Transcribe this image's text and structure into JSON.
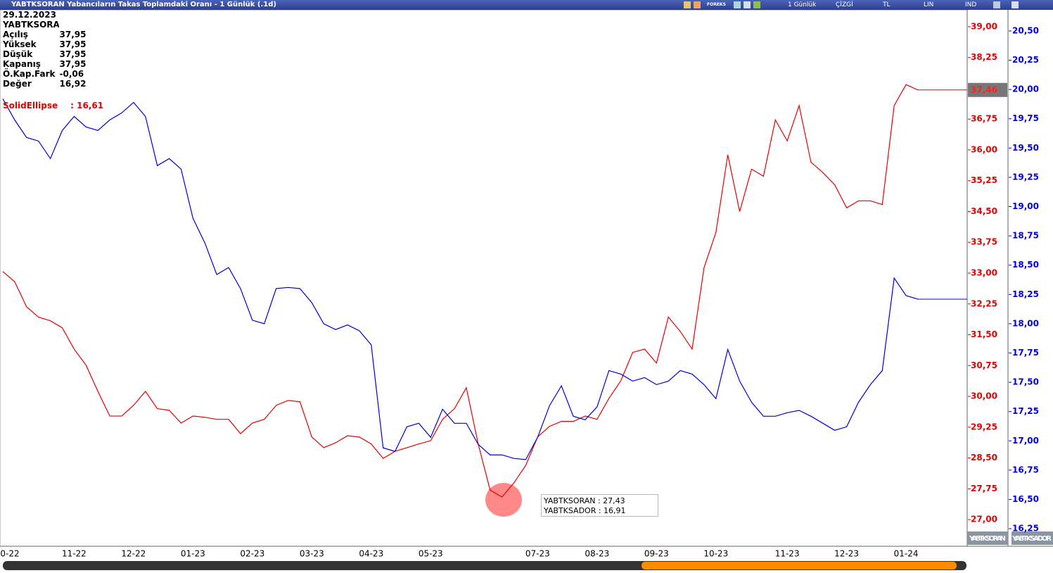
{
  "window": {
    "title": "YABTKSORAN Yabancıların Takas Toplamdaki Oranı - 1 Günlük (.1d)",
    "toolbar": [
      "FOREKS",
      "1 Günlük",
      "ÇİZGİ",
      "TL",
      "LIN",
      "IND"
    ]
  },
  "info_panel": {
    "date": "29.12.2023",
    "symbol": "YABTKSORAN",
    "rows": [
      [
        "Açılış",
        "37,95"
      ],
      [
        "Yüksek",
        "37,95"
      ],
      [
        "Düşük",
        "37,95"
      ],
      [
        "Kapanış",
        "37,95"
      ],
      [
        "Ö.Kap.Fark",
        "-0,06"
      ],
      [
        "Değer",
        "16,92"
      ]
    ],
    "drawing": {
      "name": "SolidEllipse",
      "value": ": 16,61"
    }
  },
  "tooltip": [
    "YABTKSORAN : 27,43",
    "YABTKSADOR : 16,91"
  ],
  "axis_tabs": [
    "YABTKSORAN",
    "YABTKSADOR"
  ],
  "chart_data": {
    "type": "line",
    "categories": [
      "0-22",
      null,
      null,
      null,
      null,
      null,
      "11-22",
      null,
      null,
      null,
      null,
      "12-22",
      null,
      null,
      null,
      null,
      "01-23",
      null,
      null,
      null,
      null,
      "02-23",
      null,
      null,
      null,
      null,
      "03-23",
      null,
      null,
      null,
      null,
      "04-23",
      null,
      null,
      null,
      null,
      "05-23",
      null,
      null,
      null,
      null,
      null,
      null,
      null,
      null,
      "07-23",
      null,
      null,
      null,
      null,
      "08-23",
      null,
      null,
      null,
      null,
      "09-23",
      null,
      null,
      null,
      null,
      "10-23",
      null,
      null,
      null,
      null,
      null,
      "11-23",
      null,
      null,
      null,
      null,
      "12-23",
      null,
      null,
      null,
      null,
      "01-24",
      null
    ],
    "series": [
      {
        "name": "YABTKSORAN",
        "color": "#e60000",
        "axis": "y",
        "last_label": "37,46",
        "values": [
          33.04,
          32.79,
          32.18,
          31.93,
          31.84,
          31.67,
          31.15,
          30.76,
          30.12,
          29.52,
          29.52,
          29.78,
          30.12,
          29.7,
          29.66,
          29.35,
          29.52,
          29.49,
          29.44,
          29.44,
          29.09,
          29.35,
          29.44,
          29.78,
          29.9,
          29.87,
          29.01,
          28.75,
          28.87,
          29.04,
          29.01,
          28.84,
          28.49,
          28.66,
          28.75,
          28.84,
          28.92,
          29.44,
          29.7,
          30.21,
          28.84,
          27.72,
          27.55,
          27.89,
          28.32,
          29.01,
          29.27,
          29.39,
          29.39,
          29.52,
          29.44,
          29.95,
          30.38,
          31.07,
          31.15,
          30.81,
          31.93,
          31.58,
          31.15,
          33.13,
          33.99,
          35.88,
          34.5,
          35.53,
          35.36,
          36.73,
          36.22,
          37.08,
          35.7,
          35.45,
          35.15,
          34.59,
          34.76,
          34.76,
          34.67,
          37.08,
          37.59,
          37.46
        ]
      },
      {
        "name": "YABTKSADOR",
        "color": "#0000dd",
        "axis": "y2",
        "values": [
          19.92,
          19.74,
          19.59,
          19.56,
          19.41,
          19.65,
          19.77,
          19.68,
          19.65,
          19.74,
          19.8,
          19.89,
          19.77,
          19.35,
          19.41,
          19.32,
          18.9,
          18.69,
          18.42,
          18.48,
          18.3,
          18.03,
          18.0,
          18.3,
          18.31,
          18.3,
          18.18,
          18.0,
          17.95,
          17.99,
          17.94,
          17.82,
          16.94,
          16.91,
          17.12,
          17.15,
          17.03,
          17.27,
          17.15,
          17.15,
          16.97,
          16.88,
          16.88,
          16.85,
          16.84,
          17.03,
          17.3,
          17.47,
          17.21,
          17.18,
          17.29,
          17.6,
          17.57,
          17.51,
          17.54,
          17.48,
          17.51,
          17.6,
          17.57,
          17.48,
          17.36,
          17.78,
          17.51,
          17.33,
          17.21,
          17.21,
          17.24,
          17.26,
          17.21,
          17.15,
          17.09,
          17.12,
          17.33,
          17.48,
          17.6,
          18.39,
          18.24,
          18.21
        ]
      }
    ],
    "ylim": [
      26.35,
      39.41
    ],
    "yticks": [
      {
        "value": 27,
        "label": "27,00"
      },
      {
        "value": 27.75,
        "label": "27,75"
      },
      {
        "value": 28.5,
        "label": "28,50"
      },
      {
        "value": 29.25,
        "label": "29,25"
      },
      {
        "value": 30,
        "label": "30,00"
      },
      {
        "value": 30.75,
        "label": "30,75"
      },
      {
        "value": 31.5,
        "label": "31,50"
      },
      {
        "value": 32.25,
        "label": "32,25"
      },
      {
        "value": 33,
        "label": "33,00"
      },
      {
        "value": 33.75,
        "label": "33,75"
      },
      {
        "value": 34.5,
        "label": "34,50"
      },
      {
        "value": 35.25,
        "label": "35,25"
      },
      {
        "value": 36,
        "label": "36,00"
      },
      {
        "value": 36.75,
        "label": "36,75"
      },
      {
        "value": 37.5,
        "label": "37,50"
      },
      {
        "value": 38.25,
        "label": "38,25"
      },
      {
        "value": 39,
        "label": "39,00"
      }
    ],
    "y2lim": [
      16.1,
      20.68
    ],
    "y2ticks": [
      {
        "value": 16.25,
        "label": "16,25"
      },
      {
        "value": 16.5,
        "label": "16,50"
      },
      {
        "value": 16.75,
        "label": "16,75"
      },
      {
        "value": 17,
        "label": "17,00"
      },
      {
        "value": 17.25,
        "label": "17,25"
      },
      {
        "value": 17.5,
        "label": "17,50"
      },
      {
        "value": 17.75,
        "label": "17,75"
      },
      {
        "value": 18,
        "label": "18,00"
      },
      {
        "value": 18.25,
        "label": "18,25"
      },
      {
        "value": 18.5,
        "label": "18,50"
      },
      {
        "value": 18.75,
        "label": "18,75"
      },
      {
        "value": 19,
        "label": "19,00"
      },
      {
        "value": 19.25,
        "label": "19,25"
      },
      {
        "value": 19.5,
        "label": "19,50"
      },
      {
        "value": 19.75,
        "label": "19,75"
      },
      {
        "value": 20,
        "label": "20,00"
      },
      {
        "value": 20.25,
        "label": "20,25"
      },
      {
        "value": 20.5,
        "label": "20,50"
      }
    ],
    "grid": false
  }
}
